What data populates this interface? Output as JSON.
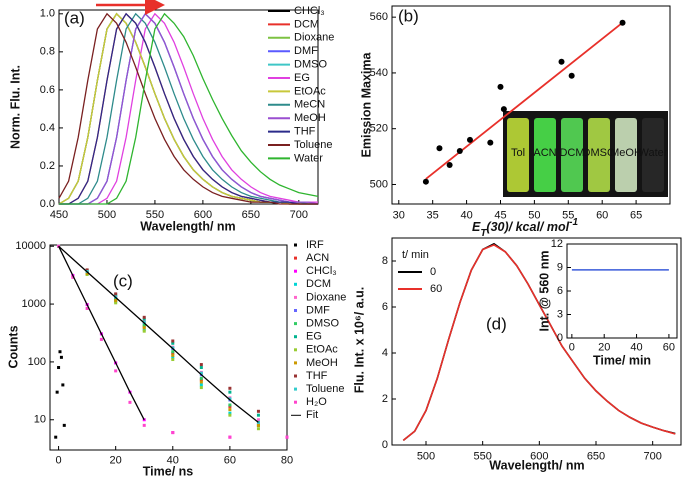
{
  "chart_data": [
    {
      "type": "line",
      "label": "(a)",
      "xlabel": "Wavelength/ nm",
      "ylabel": "Norm. Flu. Int.",
      "x": [
        450,
        460,
        470,
        480,
        490,
        500,
        510,
        520,
        530,
        540,
        550,
        560,
        570,
        580,
        590,
        600,
        610,
        620,
        630,
        640,
        650,
        660,
        670,
        680,
        690,
        700,
        710,
        720
      ],
      "xlim": [
        450,
        720
      ],
      "ylim": [
        0,
        1.02
      ],
      "xticks": [
        450,
        500,
        550,
        600,
        650,
        700
      ],
      "yticks": [
        {
          "value": 0,
          "label": "0.0"
        },
        {
          "value": 0.2,
          "label": "0.2"
        },
        {
          "value": 0.4,
          "label": "0.4"
        },
        {
          "value": 0.6,
          "label": "0.6"
        },
        {
          "value": 0.8,
          "label": "0.8"
        },
        {
          "value": 1,
          "label": "1.0"
        }
      ],
      "arrow_color": "#e8302a",
      "series": [
        {
          "name": "CHCl₃",
          "color": "#000000",
          "values": [
            0,
            0.03,
            0.12,
            0.35,
            0.65,
            0.92,
            1,
            0.95,
            0.85,
            0.72,
            0.58,
            0.45,
            0.34,
            0.25,
            0.18,
            0.13,
            0.09,
            0.06,
            0.04,
            0.03,
            0.02,
            0.01,
            0.01,
            0.01,
            0,
            0,
            0,
            0
          ]
        },
        {
          "name": "DCM",
          "color": "#e8302a",
          "values": [
            0,
            0,
            0.03,
            0.12,
            0.35,
            0.65,
            0.92,
            1,
            0.95,
            0.85,
            0.72,
            0.58,
            0.45,
            0.34,
            0.25,
            0.18,
            0.13,
            0.09,
            0.06,
            0.04,
            0.03,
            0.02,
            0.01,
            0.01,
            0.01,
            0,
            0,
            0
          ]
        },
        {
          "name": "Dioxane",
          "color": "#7dc242",
          "values": [
            0,
            0.03,
            0.12,
            0.35,
            0.65,
            0.92,
            1,
            0.95,
            0.85,
            0.72,
            0.58,
            0.45,
            0.34,
            0.25,
            0.18,
            0.13,
            0.09,
            0.06,
            0.04,
            0.03,
            0.02,
            0.01,
            0.01,
            0.01,
            0,
            0,
            0,
            0
          ]
        },
        {
          "name": "DMF",
          "color": "#5a5aff",
          "values": [
            0,
            0,
            0,
            0,
            0.03,
            0.12,
            0.35,
            0.65,
            0.92,
            1,
            0.95,
            0.85,
            0.72,
            0.58,
            0.45,
            0.34,
            0.25,
            0.18,
            0.13,
            0.09,
            0.06,
            0.04,
            0.03,
            0.02,
            0.01,
            0.01,
            0.01,
            0
          ]
        },
        {
          "name": "DMSO",
          "color": "#3fc6c6",
          "values": [
            0,
            0,
            0,
            0,
            0.03,
            0.12,
            0.35,
            0.65,
            0.92,
            1,
            0.95,
            0.85,
            0.72,
            0.58,
            0.45,
            0.34,
            0.25,
            0.18,
            0.13,
            0.09,
            0.06,
            0.04,
            0.03,
            0.02,
            0.01,
            0.01,
            0.01,
            0
          ]
        },
        {
          "name": "EG",
          "color": "#e040e0",
          "values": [
            0,
            0,
            0,
            0,
            0,
            0.03,
            0.12,
            0.35,
            0.65,
            0.92,
            1,
            0.95,
            0.85,
            0.72,
            0.58,
            0.45,
            0.34,
            0.25,
            0.18,
            0.13,
            0.09,
            0.06,
            0.04,
            0.03,
            0.02,
            0.01,
            0.01,
            0.01
          ]
        },
        {
          "name": "EtOAc",
          "color": "#c8c83a",
          "values": [
            0,
            0.03,
            0.12,
            0.35,
            0.65,
            0.92,
            1,
            0.95,
            0.85,
            0.72,
            0.58,
            0.45,
            0.34,
            0.25,
            0.18,
            0.13,
            0.09,
            0.06,
            0.04,
            0.03,
            0.02,
            0.01,
            0.01,
            0.01,
            0,
            0,
            0,
            0
          ]
        },
        {
          "name": "MeCN",
          "color": "#2e8b8b",
          "values": [
            0,
            0,
            0,
            0.03,
            0.12,
            0.35,
            0.65,
            0.92,
            1,
            0.95,
            0.85,
            0.72,
            0.58,
            0.45,
            0.34,
            0.25,
            0.18,
            0.13,
            0.09,
            0.06,
            0.04,
            0.03,
            0.02,
            0.01,
            0.01,
            0.01,
            0,
            0
          ]
        },
        {
          "name": "MeOH",
          "color": "#9a4fd0",
          "values": [
            0,
            0,
            0,
            0,
            0.03,
            0.12,
            0.35,
            0.65,
            0.92,
            1,
            0.95,
            0.85,
            0.72,
            0.58,
            0.45,
            0.34,
            0.25,
            0.18,
            0.13,
            0.09,
            0.06,
            0.04,
            0.03,
            0.02,
            0.01,
            0.01,
            0.01,
            0
          ]
        },
        {
          "name": "THF",
          "color": "#2b2b8a",
          "values": [
            0,
            0,
            0.03,
            0.12,
            0.35,
            0.65,
            0.92,
            1,
            0.95,
            0.85,
            0.72,
            0.58,
            0.45,
            0.34,
            0.25,
            0.18,
            0.13,
            0.09,
            0.06,
            0.04,
            0.03,
            0.02,
            0.01,
            0.01,
            0.01,
            0,
            0,
            0
          ]
        },
        {
          "name": "Toluene",
          "color": "#7a2020",
          "values": [
            0.03,
            0.12,
            0.35,
            0.65,
            0.92,
            1,
            0.95,
            0.85,
            0.72,
            0.58,
            0.45,
            0.34,
            0.25,
            0.18,
            0.13,
            0.09,
            0.06,
            0.04,
            0.03,
            0.02,
            0.01,
            0.01,
            0.01,
            0,
            0,
            0,
            0,
            0
          ]
        },
        {
          "name": "Water",
          "color": "#2fb52f",
          "values": [
            0,
            0,
            0,
            0,
            0,
            0,
            0.03,
            0.12,
            0.35,
            0.65,
            0.92,
            1,
            0.95,
            0.88,
            0.78,
            0.66,
            0.55,
            0.45,
            0.36,
            0.28,
            0.22,
            0.17,
            0.13,
            0.1,
            0.08,
            0.06,
            0.05,
            0.04
          ]
        }
      ]
    },
    {
      "type": "scatter",
      "label": "(b)",
      "xlabel": [
        {
          "text": "E"
        },
        {
          "text": "T",
          "sub": true
        },
        {
          "text": "(30)/ kcal/ mol"
        },
        {
          "text": "-1",
          "sup": true
        }
      ],
      "ylabel": "Emission Maxima",
      "xlim": [
        29,
        70
      ],
      "ylim": [
        493,
        564
      ],
      "xticks": [
        30,
        35,
        40,
        45,
        50,
        55,
        60,
        65
      ],
      "yticks": [
        500,
        520,
        540,
        560
      ],
      "color": "#000000",
      "x": [
        34,
        36,
        37.5,
        39,
        40.5,
        43.5,
        45,
        45.5,
        54,
        55.5,
        63
      ],
      "values": [
        501,
        513,
        507,
        512,
        516,
        515,
        535,
        527,
        544,
        539,
        558
      ],
      "fit": {
        "x": [
          34,
          63
        ],
        "values": [
          502,
          558
        ],
        "color": "#e8302a"
      },
      "inset_labels": [
        "Tol",
        "ACN",
        "DCM",
        "DMSO",
        "MeOH",
        "Water"
      ],
      "inset_label_colors": [
        "#ffffff",
        "#ffffff",
        "#ffffff",
        "#ff5a5a",
        "#ff5a5a",
        "#ff5a5a"
      ]
    },
    {
      "type": "scatter",
      "label": "(c)",
      "xlabel": "Time/ ns",
      "ylabel": "Counts",
      "ylog": true,
      "xlim": [
        -3,
        80
      ],
      "ylim": [
        3,
        10500
      ],
      "xticks": [
        0,
        20,
        40,
        60,
        80
      ],
      "yticks": [
        10,
        100,
        1000,
        10000
      ],
      "series": [
        {
          "name": "IRF",
          "color": "#000000",
          "x": [
            -1,
            -0.5,
            0,
            0.5,
            1,
            1.5,
            2
          ],
          "values": [
            5,
            30,
            80,
            150,
            120,
            40,
            8
          ]
        },
        {
          "name": "ACN",
          "color": "#e8302a",
          "x": [
            0,
            10,
            20,
            30,
            40,
            50,
            60,
            70
          ],
          "values": [
            10000,
            3450,
            1190,
            410,
            140,
            49,
            17,
            8
          ]
        },
        {
          "name": "CHCl₃",
          "color": "#ff00ff",
          "x": [
            0,
            5,
            10,
            15,
            20,
            25,
            30,
            40,
            60,
            80
          ],
          "values": [
            10000,
            3130,
            980,
            306,
            96,
            30,
            10,
            6,
            5,
            5
          ]
        },
        {
          "name": "DCM",
          "color": "#00d5d5",
          "x": [
            0,
            10,
            20,
            30,
            40,
            50,
            60
          ],
          "values": [
            10000,
            3300,
            1100,
            360,
            120,
            40,
            13
          ]
        },
        {
          "name": "Dioxane",
          "color": "#ff66cc",
          "x": [
            0,
            10,
            20,
            30,
            40,
            50,
            60,
            70
          ],
          "values": [
            10000,
            3700,
            1350,
            500,
            180,
            66,
            24,
            10
          ]
        },
        {
          "name": "DMF",
          "color": "#6666ff",
          "x": [
            0,
            10,
            20,
            30,
            40,
            50,
            60,
            70
          ],
          "values": [
            10000,
            3600,
            1300,
            470,
            170,
            60,
            22,
            9
          ]
        },
        {
          "name": "DMSO",
          "color": "#33cc66",
          "x": [
            0,
            10,
            20,
            30,
            40,
            50,
            60,
            70
          ],
          "values": [
            10000,
            3500,
            1220,
            430,
            150,
            52,
            18,
            8
          ]
        },
        {
          "name": "EG",
          "color": "#00b38f",
          "x": [
            0,
            10,
            20,
            30,
            40,
            50,
            60,
            70
          ],
          "values": [
            10000,
            3800,
            1450,
            550,
            210,
            80,
            30,
            12
          ]
        },
        {
          "name": "EtOAc",
          "color": "#99cc33",
          "x": [
            0,
            10,
            20,
            30,
            40,
            50,
            60,
            70
          ],
          "values": [
            10000,
            3250,
            1050,
            340,
            110,
            36,
            12,
            7
          ]
        },
        {
          "name": "MeOH",
          "color": "#cc9900",
          "x": [
            0,
            10,
            20,
            30,
            40,
            50,
            60,
            70
          ],
          "values": [
            10000,
            3400,
            1150,
            390,
            130,
            45,
            15,
            8
          ]
        },
        {
          "name": "THF",
          "color": "#993333",
          "x": [
            0,
            10,
            20,
            30,
            40,
            50,
            60,
            70
          ],
          "values": [
            10000,
            3900,
            1500,
            590,
            230,
            90,
            35,
            14
          ]
        },
        {
          "name": "Toluene",
          "color": "#33cccc",
          "x": [
            0,
            10,
            20,
            30,
            40,
            50,
            60,
            70
          ],
          "values": [
            10000,
            3650,
            1330,
            480,
            175,
            64,
            23,
            9
          ]
        },
        {
          "name": "H₂O",
          "color": "#ff44cc",
          "x": [
            0,
            5,
            10,
            15,
            20,
            25,
            30,
            40,
            60,
            80
          ],
          "values": [
            10000,
            2900,
            840,
            245,
            70,
            20,
            8,
            6,
            5,
            5
          ]
        },
        {
          "name": "Fit",
          "color": "#000000",
          "style": "line",
          "x": [
            0,
            5,
            10,
            15,
            20,
            25,
            30,
            30,
            0,
            10,
            20,
            30,
            40,
            50,
            60,
            70
          ],
          "values": [
            10000,
            3130,
            980,
            306,
            96,
            30,
            10,
            null,
            10000,
            3600,
            1300,
            470,
            170,
            60,
            22,
            9
          ]
        }
      ]
    },
    {
      "type": "line",
      "label": "(d)",
      "xlabel": "Wavelength/ nm",
      "ylabel": "Flu. Int. x 10⁶/ a.u.",
      "legend_title": "t/ min",
      "x": [
        480,
        490,
        500,
        510,
        520,
        530,
        540,
        550,
        560,
        570,
        580,
        590,
        600,
        610,
        620,
        630,
        640,
        650,
        660,
        670,
        680,
        690,
        700,
        710,
        720
      ],
      "xlim": [
        470,
        725
      ],
      "ylim": [
        0,
        9
      ],
      "xticks": [
        500,
        550,
        600,
        650,
        700
      ],
      "yticks": [
        0,
        2,
        4,
        6,
        8
      ],
      "series": [
        {
          "name": "0",
          "color": "#000000",
          "values": [
            0.2,
            0.6,
            1.5,
            2.9,
            4.6,
            6.2,
            7.6,
            8.5,
            8.75,
            8.4,
            7.8,
            7.0,
            6.1,
            5.2,
            4.3,
            3.6,
            2.9,
            2.35,
            1.9,
            1.5,
            1.2,
            0.95,
            0.78,
            0.62,
            0.5
          ]
        },
        {
          "name": "60",
          "color": "#e8302a",
          "values": [
            0.2,
            0.6,
            1.5,
            2.9,
            4.6,
            6.2,
            7.6,
            8.5,
            8.7,
            8.4,
            7.8,
            7.0,
            6.1,
            5.2,
            4.3,
            3.6,
            2.9,
            2.35,
            1.9,
            1.5,
            1.2,
            0.95,
            0.78,
            0.62,
            0.48
          ]
        }
      ],
      "inset": {
        "type": "line",
        "xlabel": "Time/ min",
        "ylabel": "Int. @ 560 nm",
        "xlim": [
          -3,
          65
        ],
        "ylim": [
          0,
          12
        ],
        "xticks": [
          0,
          20,
          40,
          60
        ],
        "yticks": [
          0,
          3,
          6,
          9,
          12
        ],
        "x": [
          0,
          10,
          20,
          30,
          40,
          50,
          60
        ],
        "series": [
          {
            "color": "#3a5bd9",
            "values": [
              8.7,
              8.7,
              8.7,
              8.7,
              8.7,
              8.7,
              8.7
            ]
          }
        ]
      }
    }
  ]
}
